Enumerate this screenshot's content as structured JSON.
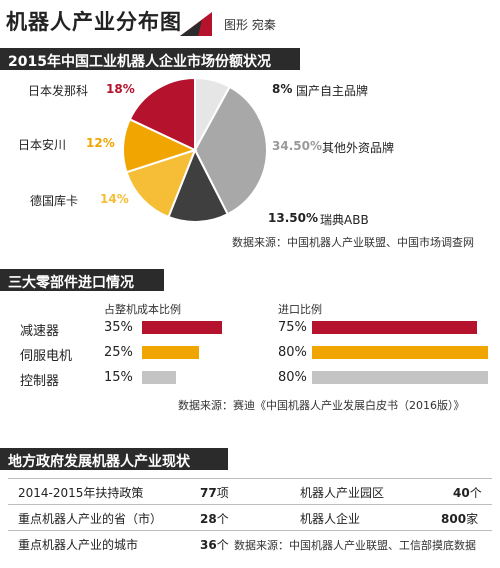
{
  "header": {
    "title": "机器人产业分布图",
    "credit": "图形 宛秦"
  },
  "colors": {
    "red": "#b5122e",
    "orange": "#f0a500",
    "yellow": "#f6bd36",
    "dark": "#3f3f3f",
    "gray": "#a8a8a8",
    "lightgray": "#e6e6e6"
  },
  "section1": {
    "title": "2015年中国工业机器人企业市场份额状况",
    "source": "数据来源：中国机器人产业联盟、中国市场调查网",
    "labels": {
      "domestic_pct": "8%",
      "domestic_name": "国产自主品牌",
      "other_pct": "34.50%",
      "other_name": "其他外资品牌",
      "abb_pct": "13.50%",
      "abb_name": "瑞典ABB",
      "fanuc_name": "日本发那科",
      "fanuc_pct": "18%",
      "yaskawa_name": "日本安川",
      "yaskawa_pct": "12%",
      "kuka_name": "德国库卡",
      "kuka_pct": "14%"
    }
  },
  "chart_data": [
    {
      "type": "pie",
      "title": "2015年中国工业机器人企业市场份额状况",
      "slices": [
        {
          "name": "国产自主品牌",
          "value": 8,
          "color": "#e6e6e6"
        },
        {
          "name": "其他外资品牌",
          "value": 34.5,
          "color": "#a8a8a8"
        },
        {
          "name": "瑞典ABB",
          "value": 13.5,
          "color": "#3f3f3f"
        },
        {
          "name": "德国库卡",
          "value": 14,
          "color": "#f6bd36"
        },
        {
          "name": "日本安川",
          "value": 12,
          "color": "#f0a500"
        },
        {
          "name": "日本发那科",
          "value": 18,
          "color": "#b5122e"
        }
      ]
    },
    {
      "type": "bar",
      "title": "三大零部件进口情况",
      "categories": [
        "减速器",
        "伺服电机",
        "控制器"
      ],
      "series": [
        {
          "name": "占整机成本比例",
          "values": [
            35,
            25,
            15
          ],
          "colors": [
            "#b5122e",
            "#f0a500",
            "#c4c4c4"
          ]
        },
        {
          "name": "进口比例",
          "values": [
            75,
            80,
            80
          ],
          "colors": [
            "#b5122e",
            "#f0a500",
            "#c4c4c4"
          ]
        }
      ],
      "ylim": [
        0,
        100
      ]
    }
  ],
  "section2": {
    "title": "三大零部件进口情况",
    "col1_head": "占整机成本比例",
    "col2_head": "进口比例",
    "rows": [
      {
        "name": "减速器",
        "cost": "35%",
        "import": "75%"
      },
      {
        "name": "伺服电机",
        "cost": "25%",
        "import": "80%"
      },
      {
        "name": "控制器",
        "cost": "15%",
        "import": "80%"
      }
    ],
    "source": "数据来源：赛迪《中国机器人产业发展白皮书（2016版）》"
  },
  "section3": {
    "title": "地方政府发展机器人产业现状",
    "r1_left": "2014-2015年扶持政策",
    "r1_left_num": "77",
    "r1_left_unit": "项",
    "r1_right": "机器人产业园区",
    "r1_right_num": "40",
    "r1_right_unit": "个",
    "r2_left": "重点机器人产业的省（市）",
    "r2_left_num": "28",
    "r2_left_unit": "个",
    "r2_right": "机器人企业",
    "r2_right_num": "800",
    "r2_right_unit": "家",
    "r3_left": "重点机器人产业的城市",
    "r3_left_num": "36",
    "r3_left_unit": "个",
    "source": "数据来源：中国机器人产业联盟、工信部摸底数据"
  }
}
